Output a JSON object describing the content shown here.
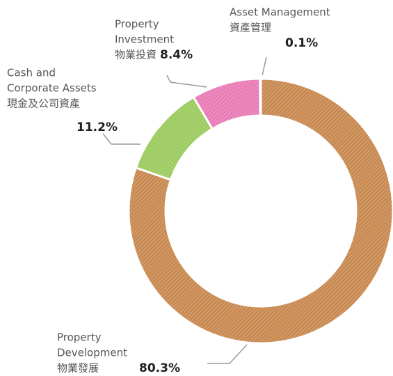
{
  "chart_data": {
    "type": "donut",
    "categories": [
      [
        "Property",
        "Development",
        "物業發展"
      ],
      [
        "Cash and",
        "Corporate Assets",
        "現金及公司資產"
      ],
      [
        "Property",
        "Investment",
        "物業投資"
      ],
      [
        "Asset Management",
        "資產管理"
      ]
    ],
    "values": [
      80.3,
      11.2,
      8.4,
      0.1
    ],
    "value_labels": [
      "80.3%",
      "11.2%",
      "8.4%",
      "0.1%"
    ],
    "colors": [
      "#c98a52",
      "#9ccb5f",
      "#e97cb6",
      "#b9865a"
    ],
    "hatched": true
  }
}
